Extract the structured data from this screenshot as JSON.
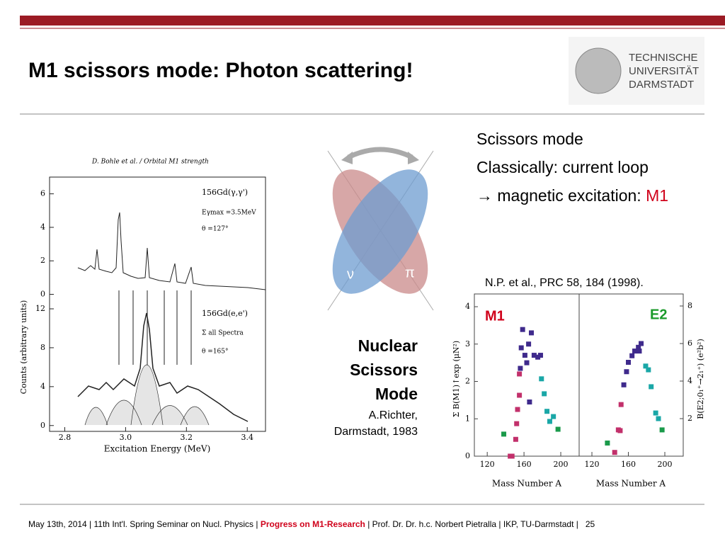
{
  "header": {
    "title": "M1 scissors mode: Photon scattering!",
    "logo": [
      "TECHNISCHE",
      "UNIVERSITÄT",
      "DARMSTADT"
    ]
  },
  "bullets": {
    "line1": "Scissors mode",
    "line2": "Classically: current loop",
    "line3": "→ magnetic excitation: ",
    "line3_highlight": "M1"
  },
  "diagram": {
    "nu": "ν",
    "pi": "π"
  },
  "caption": {
    "line1": "Nuclear",
    "line2": "Scissors",
    "line3": "Mode",
    "author": "A.Richter,",
    "place": "Darmstadt, 1983"
  },
  "citation": "N.P. et al., PRC 58, 184 (1998).",
  "spectrum": {
    "header": "D. Bohle et al. / Orbital M1 strength",
    "y_label": "Counts (arbitrary units)",
    "x_label": "Excitation Energy (MeV)",
    "xlim": [
      2.75,
      3.46
    ],
    "xticks": [
      2.8,
      {
        "value": 3,
        "label": "3.0"
      },
      3.2,
      3.4
    ],
    "upper": {
      "ylim": [
        -0.4,
        7
      ],
      "yticks": [
        0,
        2,
        4,
        6
      ],
      "reaction": "156Gd(γ,γ')",
      "energy": "Eγmax =3.5MeV",
      "angle": "θ =127°"
    },
    "lower": {
      "ylim": [
        -0.6,
        12
      ],
      "yticks": [
        0,
        4,
        8,
        12
      ],
      "reaction": "156Gd(e,e')",
      "sum": "Σ all Spectra",
      "angle": "θ =165°"
    }
  },
  "panels": [
    {
      "label": "M1",
      "label_color": "#d0021b",
      "y_label": "Σ B(M1)↑exp (μN²)",
      "x_label": "Mass Number A",
      "xlim": [
        106,
        220
      ],
      "ylim": [
        0,
        4.3
      ],
      "xticks": [
        120,
        160,
        200
      ],
      "yticks": [
        0,
        1,
        2,
        3,
        4
      ],
      "series": [
        {
          "color": "#3f2a8c",
          "x": [
            158.5,
            157,
            161,
            163,
            165,
            168,
            171,
            175,
            178,
            166,
            156
          ],
          "values": [
            3.39,
            2.9,
            2.7,
            2.5,
            3.0,
            3.3,
            2.7,
            2.65,
            2.7,
            1.45,
            2.35
          ]
        },
        {
          "color": "#c2306b",
          "x": [
            145,
            147,
            151,
            152,
            153,
            155,
            155
          ],
          "values": [
            0,
            0,
            0.45,
            0.87,
            1.25,
            1.63,
            2.2
          ]
        },
        {
          "color": "#1aa7a7",
          "x": [
            179,
            182,
            185,
            188,
            192
          ],
          "values": [
            2.07,
            1.67,
            1.2,
            0.93,
            1.06
          ]
        },
        {
          "color": "#1a9a4a",
          "x": [
            138,
            197
          ],
          "values": [
            0.59,
            0.72
          ]
        }
      ]
    },
    {
      "label": "E2",
      "label_color": "#1a9a2a",
      "y_label": "B(E2;0₁⁺→2₁⁺) (e²b²)",
      "x_label": "Mass Number A",
      "xlim": [
        106,
        220.2
      ],
      "ylim": [
        0,
        8.6
      ],
      "xticks": [
        120,
        160,
        200
      ],
      "yticks": [
        2,
        4,
        6,
        8
      ],
      "series": [
        {
          "color": "#3f2a8c",
          "x": [
            155,
            158,
            160,
            164,
            167,
            171,
            174,
            172
          ],
          "values": [
            3.8,
            4.5,
            5.0,
            5.35,
            5.6,
            5.8,
            6.0,
            5.6
          ]
        },
        {
          "color": "#c2306b",
          "x": [
            145,
            149,
            152,
            151
          ],
          "values": [
            0.2,
            1.4,
            2.75,
            1.36
          ]
        },
        {
          "color": "#1aa7a7",
          "x": [
            179,
            182,
            185,
            190,
            193
          ],
          "values": [
            4.8,
            4.6,
            3.7,
            2.3,
            2.0
          ]
        },
        {
          "color": "#1a9a4a",
          "x": [
            137,
            197
          ],
          "values": [
            0.7,
            1.4
          ]
        }
      ]
    }
  ],
  "footer": {
    "date": "May 13th, 2014 | ",
    "conference": "11th Int'l. Spring Seminar on Nucl. Physics | ",
    "topic": "Progress on M1-Research",
    "author": " |  Prof. Dr. Dr. h.c. Norbert Pietralla  | IKP, TU-Darmstadt |",
    "page": "25"
  }
}
